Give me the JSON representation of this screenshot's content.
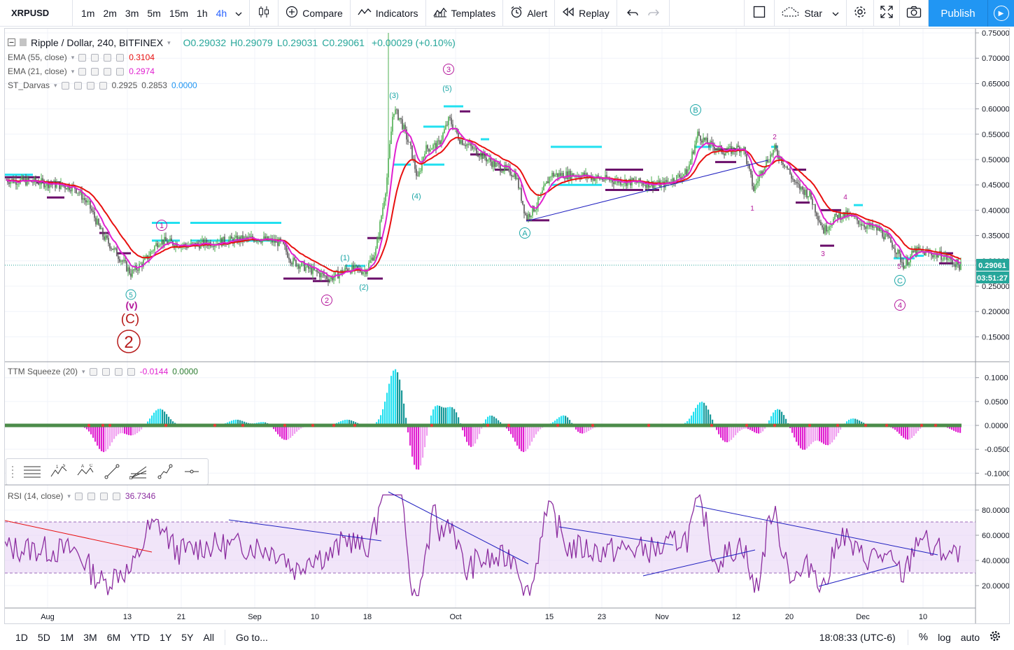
{
  "toolbar": {
    "symbol": "XRPUSD",
    "intervals": [
      "1m",
      "2m",
      "3m",
      "5m",
      "15m",
      "1h",
      "4h"
    ],
    "active_interval": "4h",
    "compare": "Compare",
    "indicators": "Indicators",
    "templates": "Templates",
    "alert": "Alert",
    "replay": "Replay",
    "star": "Star",
    "publish": "Publish"
  },
  "legend": {
    "title": "Ripple / Dollar, 240, BITFINEX",
    "open": "O0.29032",
    "high": "H0.29079",
    "low": "L0.29031",
    "close": "C0.29061",
    "change": "+0.00029 (+0.10%)",
    "ema55_label": "EMA (55, close)",
    "ema55_value": "0.3104",
    "ema21_label": "EMA (21, close)",
    "ema21_value": "0.2974",
    "darvas_label": "ST_Darvas",
    "darvas_v1": "0.2925",
    "darvas_v2": "0.2853",
    "darvas_v3": "0.0000",
    "ttm_label": "TTM Squeeze (20)",
    "ttm_v1": "-0.0144",
    "ttm_v2": "0.0000",
    "rsi_label": "RSI (14, close)",
    "rsi_value": "36.7346"
  },
  "price_axis": {
    "ticks": [
      "0.75000",
      "0.70000",
      "0.65000",
      "0.60000",
      "0.55000",
      "0.50000",
      "0.45000",
      "0.40000",
      "0.35000",
      "0.30000",
      "0.25000",
      "0.20000",
      "0.15000"
    ],
    "last_price": "0.29061",
    "countdown": "03:51:27"
  },
  "ttm_axis": {
    "ticks": [
      "0.1000",
      "0.0500",
      "0.0000",
      "-0.0500",
      "-0.1000"
    ]
  },
  "rsi_axis": {
    "ticks": [
      "80.0000",
      "60.0000",
      "40.0000",
      "20.0000"
    ]
  },
  "time_axis": {
    "labels": [
      "Aug",
      "13",
      "21",
      "Sep",
      "10",
      "18",
      "Oct",
      "15",
      "23",
      "Nov",
      "12",
      "20",
      "Dec",
      "10"
    ]
  },
  "wave_labels": {
    "c5": "5",
    "v": "(v)",
    "C_paren": "(C)",
    "two_big": "2",
    "c1": "1",
    "c2": "2",
    "p1": "(1)",
    "p2": "(2)",
    "p3": "(3)",
    "p4": "(4)",
    "p5": "(5)",
    "c3": "3",
    "A": "A",
    "B": "B",
    "n1": "1",
    "n2": "2",
    "n3": "3",
    "n4": "4",
    "n5": "5",
    "C": "C",
    "c4": "4"
  },
  "bottom": {
    "ranges": [
      "1D",
      "5D",
      "1M",
      "3M",
      "6M",
      "YTD",
      "1Y",
      "5Y",
      "All"
    ],
    "goto": "Go to...",
    "time": "18:08:33 (UTC-6)",
    "pct": "%",
    "log": "log",
    "auto": "auto"
  },
  "colors": {
    "accent": "#2196f3",
    "ema55": "#e81010",
    "ema21": "#e020d0",
    "darvas_top": "#22e0f0",
    "darvas_bottom": "#6b0f6b",
    "wave_purple": "#b4189b",
    "wave_teal": "#1aa6a6",
    "wave_red": "#b71c1c"
  }
}
